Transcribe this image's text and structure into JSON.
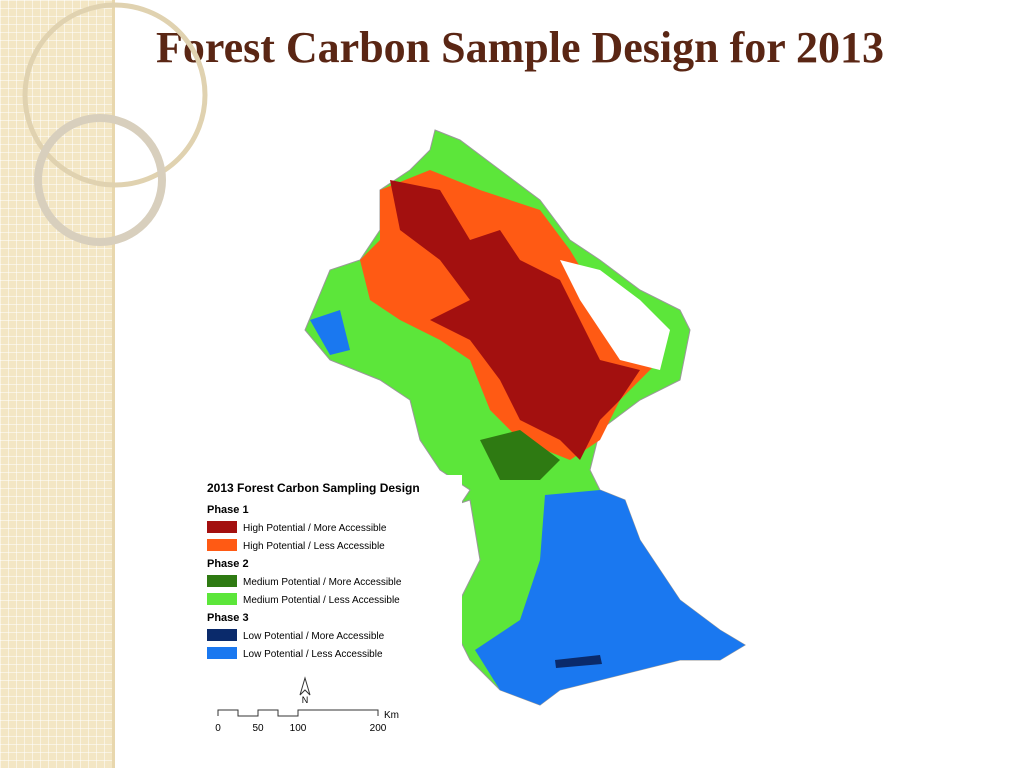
{
  "header": {
    "title": "Forest Carbon Sample Design for 2013"
  },
  "map": {
    "legend": {
      "title": "2013 Forest Carbon Sampling Design",
      "groups": [
        {
          "name": "Phase 1",
          "items": [
            {
              "label": "High Potential / More Accessible",
              "color": "#a3100f"
            },
            {
              "label": "High Potential / Less Accessible",
              "color": "#ff5a14"
            }
          ]
        },
        {
          "name": "Phase 2",
          "items": [
            {
              "label": "Medium Potential / More Accessible",
              "color": "#2e7a12"
            },
            {
              "label": "Medium Potential / Less Accessible",
              "color": "#5ce63a"
            }
          ]
        },
        {
          "name": "Phase 3",
          "items": [
            {
              "label": "Low Potential / More Accessible",
              "color": "#0a2a6b"
            },
            {
              "label": "Low Potential / Less Accessible",
              "color": "#1a78f0"
            }
          ]
        }
      ]
    },
    "north": "N",
    "scale": {
      "unit": "Km",
      "labels": [
        "0",
        "50",
        "100",
        "200"
      ]
    }
  }
}
